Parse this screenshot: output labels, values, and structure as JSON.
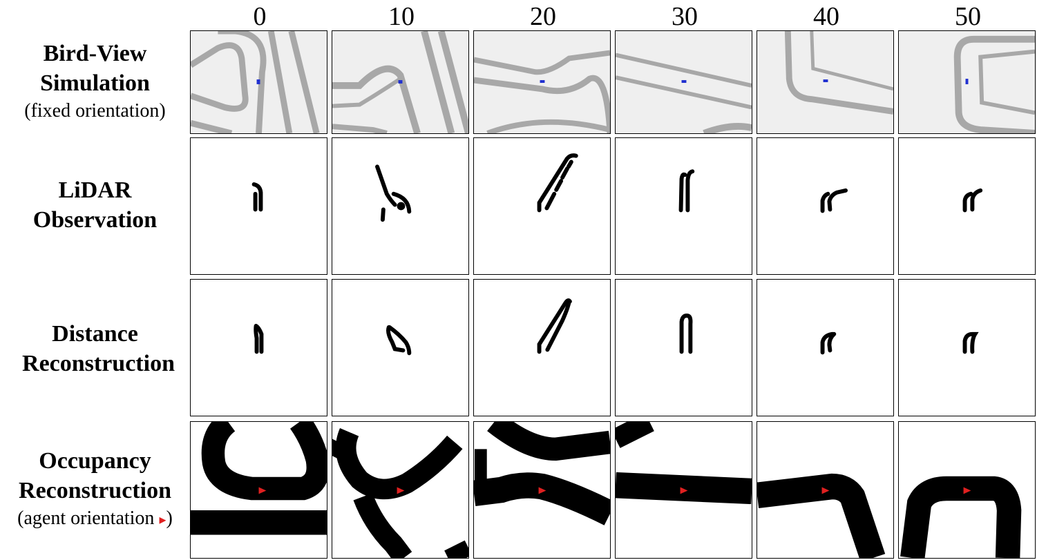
{
  "columns": [
    "0",
    "10",
    "20",
    "30",
    "40",
    "50"
  ],
  "rows": [
    {
      "title_lines": [
        "Bird-View",
        "Simulation"
      ],
      "subtitle": "(fixed orientation)"
    },
    {
      "title_lines": [
        "LiDAR",
        "Observation"
      ],
      "subtitle": ""
    },
    {
      "title_lines": [
        "Distance",
        "Reconstruction"
      ],
      "subtitle": ""
    },
    {
      "title_lines": [
        "Occupancy",
        "Reconstruction"
      ],
      "subtitle": "(agent orientation ▸)"
    }
  ],
  "colors": {
    "track": "#a8a8a8",
    "track_shadow": "#8c8c8c",
    "bird_bg": "#efefef",
    "agent_marker": "#2030d0",
    "orientation_arrow": "#e02020",
    "lidar": "#000000"
  }
}
